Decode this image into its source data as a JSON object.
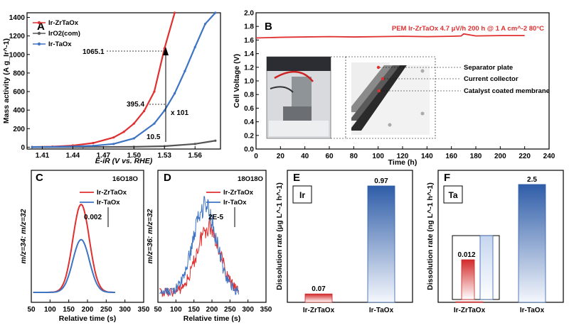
{
  "colors": {
    "red": "#e03030",
    "blue": "#3d74c4",
    "gray": "#555555"
  },
  "chart_data": [
    {
      "panel": "A",
      "type": "line",
      "xlabel": "E-iR (V vs. RHE)",
      "ylabel": "Mass activity (A g_Ir^-1)",
      "xlim": [
        1.395,
        1.585
      ],
      "ylim": [
        -20,
        1450
      ],
      "xticks": [
        "1.41",
        "1.44",
        "1.47",
        "1.50",
        "1.53",
        "1.56"
      ],
      "yticks": [
        "0",
        "200",
        "400",
        "600",
        "800",
        "1000",
        "1200",
        "1400"
      ],
      "series": [
        {
          "name": "Ir-ZrTaOx",
          "color": "#e03030",
          "x": [
            1.4,
            1.42,
            1.44,
            1.46,
            1.48,
            1.49,
            1.5,
            1.51,
            1.52,
            1.53,
            1.54
          ],
          "y": [
            2,
            6,
            18,
            45,
            105,
            165,
            255,
            390,
            600,
            1065,
            1500
          ]
        },
        {
          "name": "IrO2(com)",
          "color": "#555555",
          "x": [
            1.4,
            1.45,
            1.5,
            1.53,
            1.56,
            1.58
          ],
          "y": [
            0,
            1,
            4,
            10.5,
            35,
            70
          ]
        },
        {
          "name": "Ir-TaOx",
          "color": "#3d74c4",
          "x": [
            1.4,
            1.43,
            1.46,
            1.48,
            1.5,
            1.52,
            1.53,
            1.54,
            1.55,
            1.56,
            1.57,
            1.58
          ],
          "y": [
            1,
            5,
            15,
            35,
            95,
            255,
            395,
            580,
            820,
            1080,
            1330,
            1490
          ]
        }
      ],
      "annotations": {
        "v1": "1065.1",
        "v2": "395.4",
        "v3": "10.5",
        "ratio": "x 101"
      }
    },
    {
      "panel": "B",
      "type": "line",
      "title": "PEM Ir-ZrTaOx 4.7 μV/h 200 h @ 1 A cm^-2 80°C",
      "xlabel": "Time (h)",
      "ylabel": "Cell Voltage (V)",
      "xlim": [
        0,
        240
      ],
      "ylim": [
        0,
        2.0
      ],
      "xticks": [
        "0",
        "20",
        "40",
        "60",
        "80",
        "100",
        "120",
        "140",
        "160",
        "180",
        "200",
        "220",
        "240"
      ],
      "yticks": [
        "0.0",
        "0.2",
        "0.4",
        "0.6",
        "0.8",
        "1.0",
        "1.2",
        "1.4",
        "1.6",
        "1.8",
        "2.0"
      ],
      "series": [
        {
          "name": "Ir-ZrTaOx",
          "color": "#e03030",
          "x": [
            0,
            20,
            40,
            60,
            80,
            100,
            120,
            140,
            160,
            168,
            170,
            180,
            200,
            220
          ],
          "y": [
            1.63,
            1.64,
            1.645,
            1.65,
            1.645,
            1.65,
            1.655,
            1.65,
            1.655,
            1.66,
            1.69,
            1.66,
            1.665,
            1.665
          ]
        }
      ],
      "inset_labels": [
        "Separator plate",
        "Current collector",
        "Catalyst coated membrane"
      ]
    },
    {
      "panel": "C",
      "type": "line",
      "title": "16O18O",
      "xlabel": "Relative time (s)",
      "ylabel": "m/z=34: m/z=32",
      "xlim": [
        50,
        350
      ],
      "xticks": [
        "50",
        "100",
        "150",
        "200",
        "250",
        "300",
        "350"
      ],
      "scale_bar": "0.002",
      "series": [
        {
          "name": "Ir-ZrTaOx",
          "color": "#e03030",
          "peak_x": 183,
          "peak_height": 1.0
        },
        {
          "name": "Ir-TaOx",
          "color": "#3d74c4",
          "peak_x": 183,
          "peak_height": 0.6
        }
      ]
    },
    {
      "panel": "D",
      "type": "line",
      "title": "18O18O",
      "xlabel": "Relative time (s)",
      "ylabel": "m/z=36: m/z=32",
      "xlim": [
        50,
        350
      ],
      "xticks": [
        "50",
        "100",
        "150",
        "200",
        "250",
        "300",
        "350"
      ],
      "scale_bar": "2E-5",
      "series": [
        {
          "name": "Ir-ZrTaOx",
          "color": "#e03030",
          "peak_x": 190,
          "peak_height": 0.75
        },
        {
          "name": "Ir-TaOx",
          "color": "#3d74c4",
          "peak_x": 180,
          "peak_height": 1.0
        }
      ]
    },
    {
      "panel": "E",
      "type": "bar",
      "element_label": "Ir",
      "ylabel": "Dissolution rate (μg L^-1 h^-1)",
      "categories": [
        "Ir-ZrTaOx",
        "Ir-TaOx"
      ],
      "values": [
        0.07,
        0.97
      ],
      "value_labels": [
        "0.07",
        "0.97"
      ],
      "ylim": [
        0,
        1.1
      ]
    },
    {
      "panel": "F",
      "type": "bar",
      "element_label": "Ta",
      "ylabel": "Dissolution rate (ng L^-1 h^-1)",
      "categories": [
        "Ir-ZrTaOx",
        "Ir-TaOx"
      ],
      "values": [
        0.012,
        2.5
      ],
      "value_labels": [
        "0.012",
        "2.5"
      ],
      "ylim": [
        0,
        2.8
      ]
    }
  ]
}
